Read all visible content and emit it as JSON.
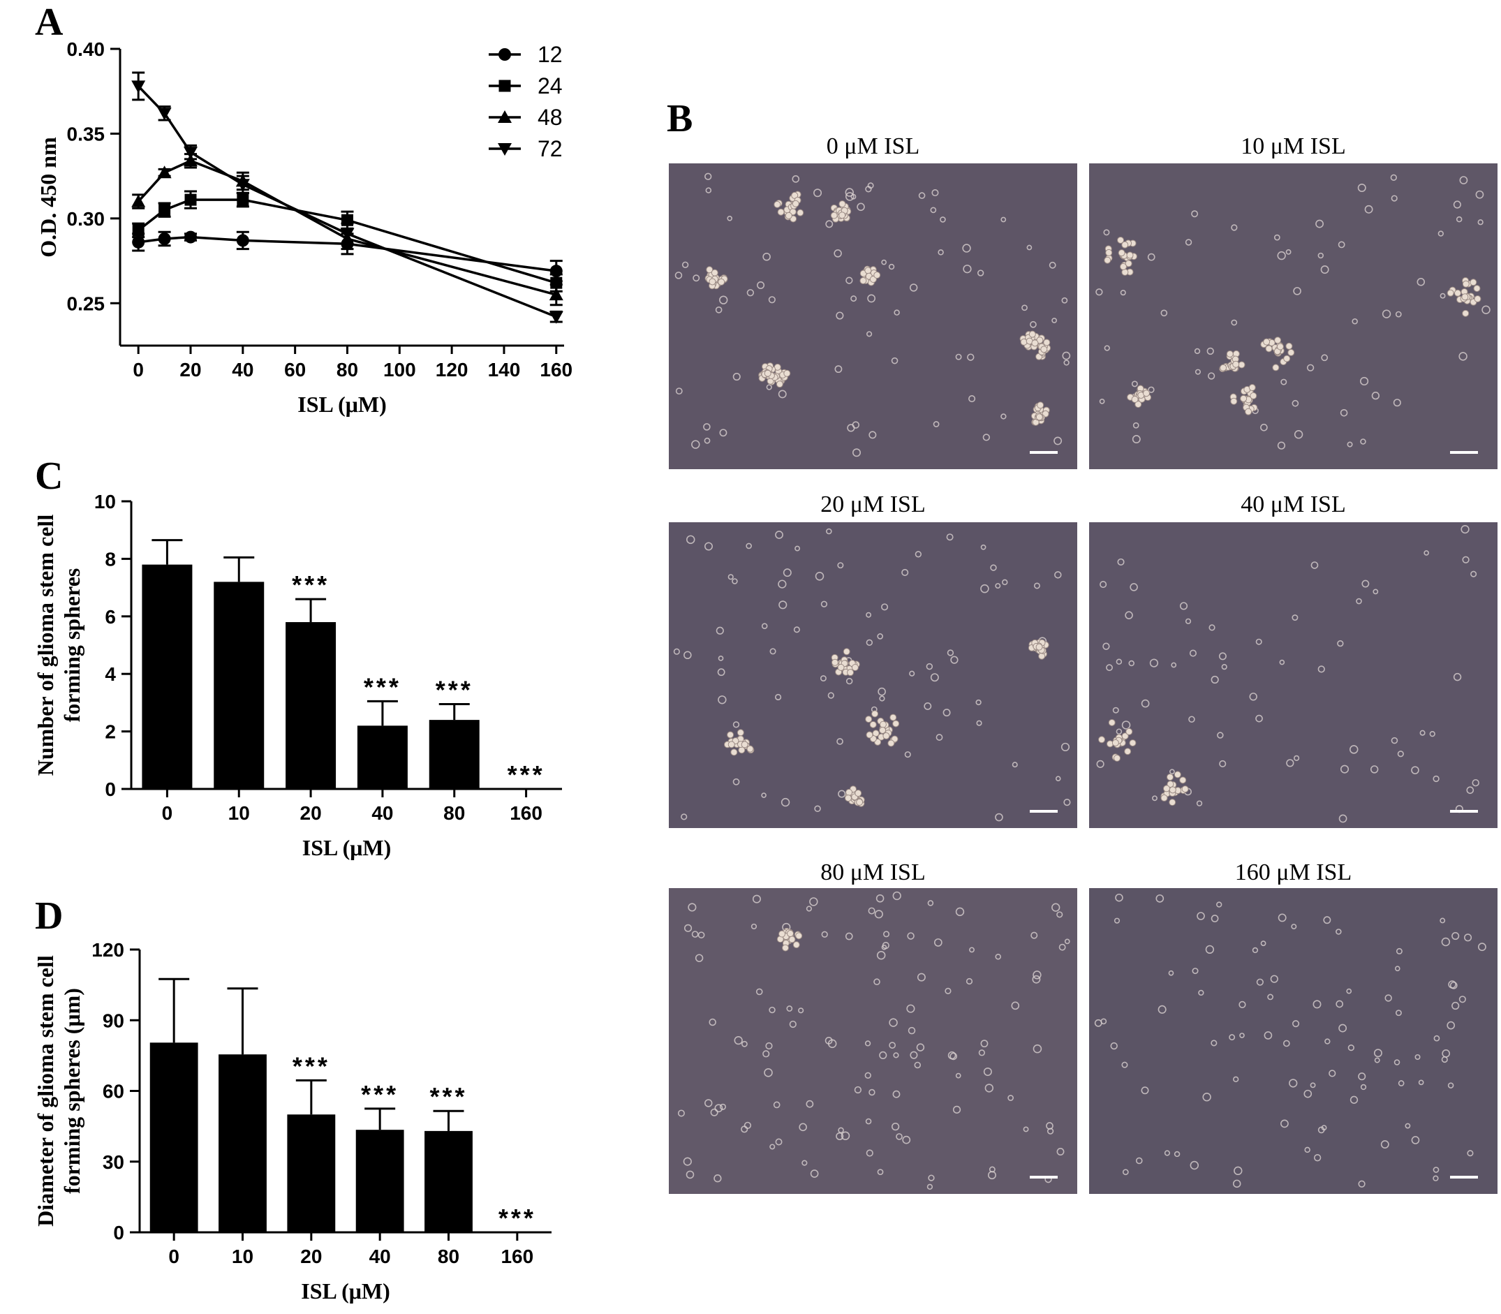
{
  "panels": {
    "A": "A",
    "B": "B",
    "C": "C",
    "D": "D"
  },
  "chart_data": [
    {
      "id": "A",
      "type": "line",
      "xlabel": "ISL (μM)",
      "ylabel": "O.D. 450 nm",
      "xlim": [
        0,
        160
      ],
      "ylim": [
        0.225,
        0.4
      ],
      "x_ticks": [
        "0",
        "20",
        "40",
        "60",
        "80",
        "100",
        "120",
        "140",
        "160"
      ],
      "y_ticks": [
        "0.25",
        "0.30",
        "0.35",
        "0.40"
      ],
      "legend_position": "top-right",
      "series": [
        {
          "name": "12",
          "marker": "circle",
          "x": [
            0,
            10,
            20,
            40,
            80,
            160
          ],
          "y": [
            0.286,
            0.288,
            0.289,
            0.287,
            0.285,
            0.269
          ],
          "err": [
            0.005,
            0.004,
            0.002,
            0.005,
            0.006,
            0.006
          ]
        },
        {
          "name": "24",
          "marker": "square",
          "x": [
            0,
            10,
            20,
            40,
            80,
            160
          ],
          "y": [
            0.293,
            0.305,
            0.311,
            0.311,
            0.299,
            0.262
          ],
          "err": [
            0.004,
            0.004,
            0.005,
            0.004,
            0.005,
            0.005
          ]
        },
        {
          "name": "48",
          "marker": "triangle-up",
          "x": [
            0,
            10,
            20,
            40,
            80,
            160
          ],
          "y": [
            0.31,
            0.327,
            0.334,
            0.322,
            0.288,
            0.255
          ],
          "err": [
            0.004,
            0.002,
            0.004,
            0.005,
            0.006,
            0.006
          ]
        },
        {
          "name": "72",
          "marker": "triangle-down",
          "x": [
            0,
            10,
            20,
            40,
            80,
            160
          ],
          "y": [
            0.378,
            0.362,
            0.339,
            0.32,
            0.291,
            0.242
          ],
          "err": [
            0.008,
            0.004,
            0.004,
            0.005,
            0.006,
            0.003
          ]
        }
      ]
    },
    {
      "id": "C",
      "type": "bar",
      "xlabel": "ISL (μM)",
      "ylabel_lines": [
        "Number of glioma stem cell",
        "forming spheres"
      ],
      "categories": [
        "0",
        "10",
        "20",
        "40",
        "80",
        "160"
      ],
      "values": [
        7.8,
        7.2,
        5.8,
        2.2,
        2.4,
        0
      ],
      "errors": [
        0.85,
        0.85,
        0.8,
        0.85,
        0.55,
        0
      ],
      "annotations": [
        "",
        "",
        "***",
        "***",
        "***",
        "***"
      ],
      "ylim": [
        0,
        10
      ],
      "y_ticks": [
        "0",
        "2",
        "4",
        "6",
        "8",
        "10"
      ]
    },
    {
      "id": "D",
      "type": "bar",
      "xlabel": "ISL (μM)",
      "ylabel_lines": [
        "Diameter of glioma stem cell",
        "forming spheres  (μm)"
      ],
      "categories": [
        "0",
        "10",
        "20",
        "40",
        "80",
        "160"
      ],
      "values": [
        80.5,
        75.5,
        50,
        43.5,
        43,
        0
      ],
      "errors": [
        27,
        28,
        14.5,
        9,
        8.5,
        0
      ],
      "annotations": [
        "",
        "",
        "***",
        "***",
        "***",
        "***"
      ],
      "ylim": [
        0,
        120
      ],
      "y_ticks": [
        "0",
        "30",
        "60",
        "90",
        "120"
      ]
    }
  ],
  "micrographs": [
    {
      "caption": "0 μM ISL",
      "bg": "#5e5566",
      "clusters": 9,
      "cells": 70
    },
    {
      "caption": "10 μM ISL",
      "bg": "#5f5767",
      "clusters": 6,
      "cells": 60
    },
    {
      "caption": "20 μM ISL",
      "bg": "#5c5466",
      "clusters": 5,
      "cells": 70
    },
    {
      "caption": "40 μM ISL",
      "bg": "#5d5567",
      "clusters": 2,
      "cells": 60
    },
    {
      "caption": "80 μM ISL",
      "bg": "#625969",
      "clusters": 1,
      "cells": 110
    },
    {
      "caption": "160 μM ISL",
      "bg": "#5b5465",
      "clusters": 0,
      "cells": 90
    }
  ]
}
